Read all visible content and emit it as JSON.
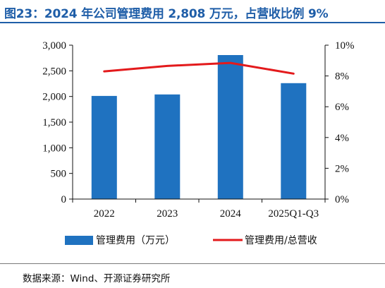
{
  "title": "图23：2024 年公司管理费用 2,808 万元，占营收比例 9%",
  "source": "数据来源：Wind、开源证券研究所",
  "colors": {
    "title": "#1f5ea8",
    "bar": "#1f72c0",
    "line": "#e31a1c",
    "axis": "#111111"
  },
  "chart_data": {
    "type": "bar+line",
    "categories": [
      "2022",
      "2023",
      "2024",
      "2025Q1-Q3"
    ],
    "series": [
      {
        "name": "管理费用（万元）",
        "type": "bar",
        "axis": "left",
        "values": [
          2010,
          2040,
          2808,
          2260
        ]
      },
      {
        "name": "管理费用/总营收",
        "type": "line",
        "axis": "right",
        "values": [
          8.3,
          8.65,
          8.85,
          8.15
        ]
      }
    ],
    "left_axis": {
      "min": 0,
      "max": 3000,
      "ticks": [
        0,
        500,
        1000,
        1500,
        2000,
        2500,
        3000
      ],
      "tick_labels": [
        "0",
        "500",
        "1,000",
        "1,500",
        "2,000",
        "2,500",
        "3,000"
      ]
    },
    "right_axis": {
      "min": 0,
      "max": 10,
      "ticks": [
        0,
        2,
        4,
        6,
        8,
        10
      ],
      "tick_labels": [
        "0%",
        "2%",
        "4%",
        "6%",
        "8%",
        "10%"
      ]
    },
    "grid": false,
    "legend_position": "bottom"
  }
}
